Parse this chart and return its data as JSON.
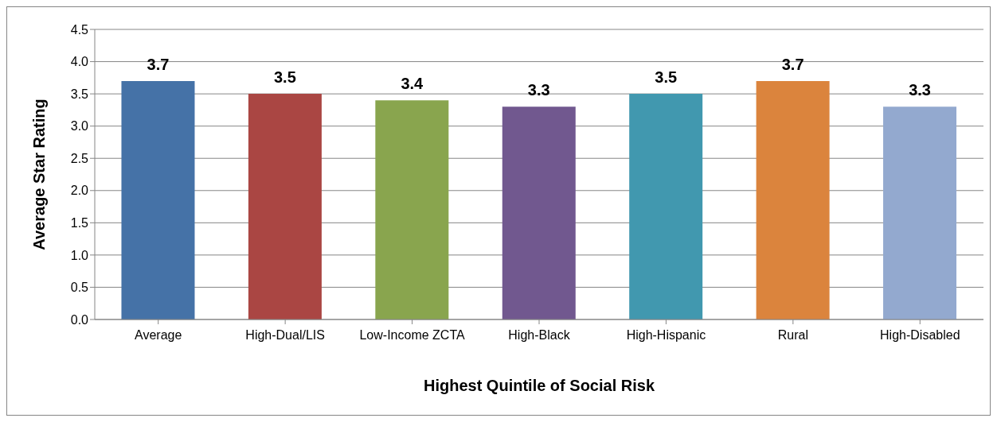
{
  "chart_data": {
    "type": "bar",
    "xlabel": "Highest Quintile of Social Risk",
    "ylabel": "Average Star Rating",
    "categories": [
      "Average",
      "High-Dual/LIS",
      "Low-Income ZCTA",
      "High-Black",
      "High-Hispanic",
      "Rural",
      "High-Disabled"
    ],
    "values": [
      3.7,
      3.5,
      3.4,
      3.3,
      3.5,
      3.7,
      3.3
    ],
    "colors": [
      "#4572a7",
      "#aa4643",
      "#89a54e",
      "#71588f",
      "#4198af",
      "#db843d",
      "#93a9cf"
    ],
    "ylim": [
      0,
      4.5
    ],
    "yticks": [
      {
        "value": 0,
        "label": "0.0"
      },
      {
        "value": 0.5,
        "label": "0.5"
      },
      {
        "value": 1,
        "label": "1.0"
      },
      {
        "value": 1.5,
        "label": "1.5"
      },
      {
        "value": 2,
        "label": "2.0"
      },
      {
        "value": 2.5,
        "label": "2.5"
      },
      {
        "value": 3,
        "label": "3.0"
      },
      {
        "value": 3.5,
        "label": "3.5"
      },
      {
        "value": 4,
        "label": "4.0"
      },
      {
        "value": 4.5,
        "label": "4.5"
      }
    ],
    "grid": "y",
    "data_labels": true
  }
}
